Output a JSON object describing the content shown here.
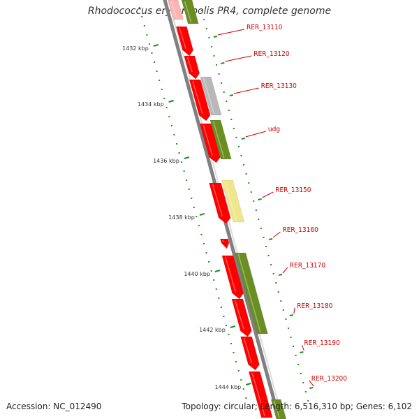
{
  "title": "Rhodococcus erythropolis PR4, complete genome",
  "accession": "Accession: NC_012490",
  "summary": "Topology: circular; Length: 6,516,310 bp; Genes: 6,102",
  "colors": {
    "cds_red": "#ff0000",
    "cds_green": "#6b8e23",
    "cds_gray": "#b8b8b8",
    "cds_yellow": "#f0e68c",
    "backbone": "#808080",
    "tick_green": "#228b22",
    "label_red": "#cc0000"
  },
  "scale_ticks": [
    {
      "label": "1432 kbp"
    },
    {
      "label": "1434 kbp"
    },
    {
      "label": "1436 kbp"
    },
    {
      "label": "1438 kbp"
    },
    {
      "label": "1440 kbp"
    },
    {
      "label": "1442 kbp"
    },
    {
      "label": "1444 kbp"
    }
  ],
  "gene_labels": [
    {
      "label": "RER_13110"
    },
    {
      "label": "RER_13120"
    },
    {
      "label": "RER_13130"
    },
    {
      "label": "udg"
    },
    {
      "label": "RER_13150"
    },
    {
      "label": "RER_13160"
    },
    {
      "label": "RER_13170"
    },
    {
      "label": "RER_13180"
    },
    {
      "label": "RER_13190"
    },
    {
      "label": "RER_13200"
    }
  ]
}
